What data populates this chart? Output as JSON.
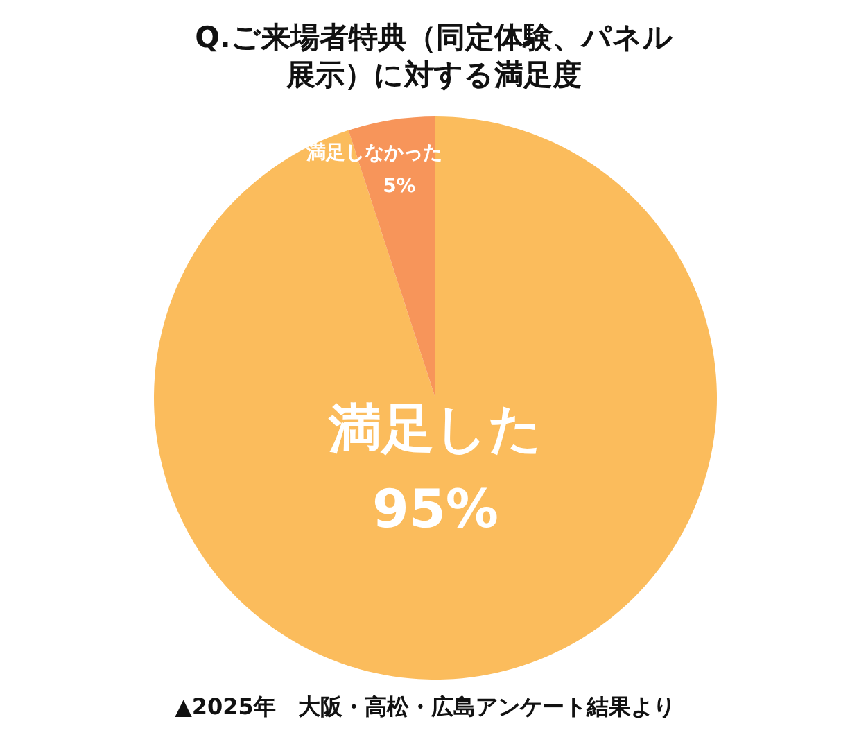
{
  "chart_data": {
    "type": "pie",
    "title": "Q.ご来場者特典（同定体験、パネル展示）に対する満足度",
    "categories": [
      "満足した",
      "満足しなかった"
    ],
    "values": [
      95,
      5
    ],
    "value_labels": [
      "95%",
      "5%"
    ],
    "colors": [
      "#fbbc5c",
      "#f7955a"
    ],
    "annotations": [
      "▲2025年　大阪・高松・広島アンケート結果より"
    ]
  }
}
